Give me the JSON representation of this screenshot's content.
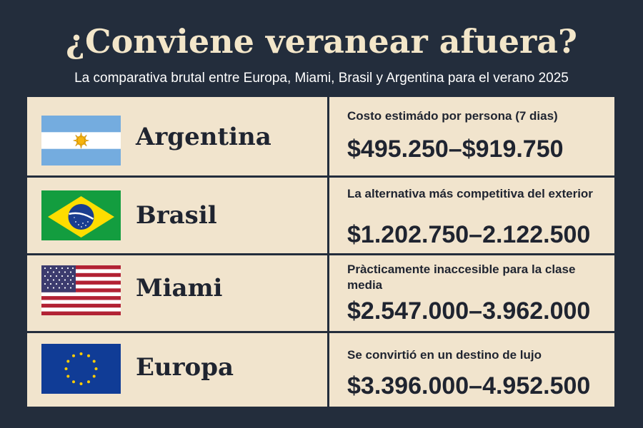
{
  "header": {
    "title": "¿Conviene veranear afuera?",
    "subtitle": "La comparativa brutal entre Europa, Miami, Brasil y Argentina para el verano 2025"
  },
  "colors": {
    "background": "#232d3c",
    "panel": "#f1e4cd",
    "title": "#f3e6c9",
    "text": "#1f2430"
  },
  "rows": [
    {
      "country": "Argentina",
      "flag_icon": "argentina-flag-icon",
      "note": "Costo estimádo por persona (7 dias)",
      "price": "$495.250–$919.750"
    },
    {
      "country": "Brasil",
      "flag_icon": "brazil-flag-icon",
      "note": "La alternativa más competitiva del exterior",
      "price": "$1.202.750–2.122.500"
    },
    {
      "country": "Miami",
      "flag_icon": "usa-flag-icon",
      "note": "Pràcticamente inaccesible para la clase media",
      "price": "$2.547.000–3.962.000"
    },
    {
      "country": "Europa",
      "flag_icon": "eu-flag-icon",
      "note": "Se convirtió en un destino de lujo",
      "price": "$3.396.000–4.952.500"
    }
  ]
}
